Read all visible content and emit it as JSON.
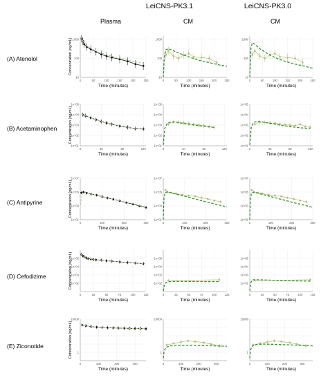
{
  "headers": {
    "group_pk31": "LeiCNS-PK3.1",
    "group_pk30": "LeiCNS-PK3.0",
    "col_plasma": "Plasma",
    "col_cm_a": "CM",
    "col_cm_b": "CM"
  },
  "rows": [
    {
      "label": "(A) Atenolol",
      "ylabel": "Concentration (ng/mL)",
      "xlabel": "Time (minutes)"
    },
    {
      "label": "(B) Acetaminophen",
      "ylabel": "Concentration (ng/mL)",
      "xlabel": "Time (minutes)"
    },
    {
      "label": "(C) Antipyrine",
      "ylabel": "Concentration (ng/mL)",
      "xlabel": "Time (minutes)"
    },
    {
      "label": "(D) Cefodizime",
      "ylabel": "Concentration (ng/mL)",
      "xlabel": "Time (minutes)"
    },
    {
      "label": "(E) Ziconotide",
      "ylabel": "Concentration (ng/mL)",
      "xlabel": "Time (minutes)"
    }
  ],
  "chart_data": [
    {
      "drug": "Atenolol",
      "type": "line",
      "yscale": "log",
      "xlim": [
        0,
        250
      ],
      "xticks": [
        0,
        50,
        100,
        150,
        200,
        250
      ],
      "ylim": [
        10,
        1500
      ],
      "yticks": [
        10,
        100,
        1000
      ],
      "ytick_labels": [
        "10",
        "100",
        "1000"
      ],
      "panels": {
        "plasma": {
          "observed": {
            "x": [
              5,
              10,
              15,
              25,
              40,
              60,
              80,
              100,
              120,
              150,
              180,
              210,
              240
            ],
            "y": [
              1100,
              800,
              550,
              400,
              300,
              220,
              160,
              130,
              110,
              90,
              70,
              50,
              40
            ]
          },
          "predicted": {
            "x": [
              2,
              10,
              25,
              50,
              80,
              120,
              160,
              200,
              240
            ],
            "y": [
              1300,
              800,
              450,
              280,
              190,
              130,
              95,
              70,
              55
            ]
          }
        },
        "cm_pk31": {
          "observed": {
            "x": [
              10,
              20,
              40,
              60,
              80,
              100,
              120,
              150,
              180,
              210
            ],
            "y": [
              150,
              250,
              130,
              100,
              150,
              180,
              120,
              110,
              100,
              60
            ]
          },
          "predicted": {
            "x": [
              0,
              5,
              10,
              20,
              40,
              70,
              100,
              140,
              180,
              220,
              250
            ],
            "y": [
              10,
              150,
              280,
              320,
              250,
              170,
              120,
              80,
              60,
              45,
              38
            ]
          }
        },
        "cm_pk30": {
          "observed": {
            "x": [
              10,
              20,
              40,
              60,
              80,
              100,
              120,
              150,
              180,
              210
            ],
            "y": [
              150,
              250,
              130,
              100,
              150,
              180,
              120,
              110,
              100,
              60
            ]
          },
          "predicted": {
            "x": [
              0,
              5,
              10,
              20,
              40,
              70,
              100,
              140,
              180,
              220,
              250
            ],
            "y": [
              10,
              350,
              650,
              550,
              320,
              180,
              110,
              70,
              50,
              38,
              30
            ]
          }
        }
      }
    },
    {
      "drug": "Acetaminophen",
      "type": "line",
      "yscale": "log",
      "xlim": [
        0,
        125
      ],
      "xticks": [
        0,
        40,
        80,
        120
      ],
      "ylim": [
        10,
        100000
      ],
      "yticks": [
        10,
        100,
        1000,
        10000,
        100000
      ],
      "ytick_labels": [
        "1e+01",
        "1e+02",
        "1e+03",
        "1e+04",
        "1e+05"
      ],
      "panels": {
        "plasma": {
          "observed": {
            "x": [
              5,
              10,
              20,
              30,
              40,
              50,
              60,
              75,
              90,
              105,
              120
            ],
            "y": [
              10000,
              8000,
              5000,
              3300,
              2200,
              1600,
              1200,
              800,
              600,
              450,
              420
            ]
          },
          "predicted": {
            "x": [
              2,
              10,
              20,
              40,
              60,
              80,
              100,
              120
            ],
            "y": [
              12000,
              8000,
              5000,
              2300,
              1200,
              700,
              500,
              400
            ]
          }
        },
        "cm_pk31": {
          "observed": {
            "x": [
              10,
              20,
              30,
              40,
              50,
              60,
              70,
              80,
              90,
              100
            ],
            "y": [
              1200,
              2000,
              1800,
              1600,
              1400,
              1200,
              1000,
              900,
              700,
              600
            ]
          },
          "predicted": {
            "x": [
              0,
              3,
              8,
              15,
              25,
              40,
              60,
              80,
              100
            ],
            "y": [
              12,
              500,
              1500,
              2000,
              1900,
              1400,
              1000,
              750,
              600
            ]
          }
        },
        "cm_pk30": {
          "observed": {
            "x": [
              10,
              20,
              30,
              40,
              50,
              60,
              70,
              80,
              90,
              100,
              110,
              120
            ],
            "y": [
              1200,
              2000,
              1800,
              1600,
              1500,
              1300,
              1100,
              1000,
              900,
              1200,
              700,
              600
            ]
          },
          "predicted": {
            "x": [
              0,
              3,
              8,
              15,
              25,
              40,
              60,
              80,
              100,
              120
            ],
            "y": [
              12,
              600,
              1800,
              2300,
              2000,
              1500,
              1000,
              700,
              550,
              450
            ]
          }
        }
      }
    },
    {
      "drug": "Antipyrine",
      "type": "line",
      "yscale": "log",
      "xlim": [
        0,
        300
      ],
      "xticks": [
        0,
        100,
        200,
        300
      ],
      "ylim": [
        10,
        10000000
      ],
      "yticks": [
        10,
        1000,
        100000,
        10000000
      ],
      "ytick_labels": [
        "1e+01",
        "1e+03",
        "1e+05",
        "1e+07"
      ],
      "panels": {
        "plasma": {
          "observed": {
            "x": [
              5,
              15,
              30,
              50,
              75,
              100,
              125,
              150,
              180,
              210,
              240,
              270,
              300
            ],
            "y": [
              80000,
              100000,
              70000,
              50000,
              35000,
              22000,
              14000,
              9000,
              5500,
              3000,
              1800,
              1000,
              600
            ]
          },
          "predicted": {
            "x": [
              1,
              10,
              50,
              100,
              150,
              200,
              250,
              300
            ],
            "y": [
              1500,
              90000,
              50000,
              22000,
              9000,
              4000,
              1700,
              700
            ]
          }
        },
        "cm_pk31": {
          "observed": {
            "x": [
              10,
              20,
              40,
              60,
              90,
              120,
              150,
              180,
              210,
              240,
              270
            ],
            "y": [
              200000,
              100000,
              80000,
              60000,
              40000,
              30000,
              25000,
              15000,
              10000,
              6000,
              4000
            ]
          },
          "predicted": {
            "x": [
              0,
              3,
              8,
              20,
              50,
              100,
              150,
              200,
              250,
              300
            ],
            "y": [
              10,
              10000,
              80000,
              110000,
              60000,
              25000,
              10000,
              4000,
              1700,
              700
            ]
          }
        },
        "cm_pk30": {
          "observed": {
            "x": [
              10,
              20,
              40,
              60,
              90,
              120,
              150,
              180,
              210,
              240,
              270
            ],
            "y": [
              200000,
              100000,
              80000,
              60000,
              40000,
              30000,
              25000,
              15000,
              10000,
              6000,
              4000
            ]
          },
          "predicted": {
            "x": [
              0,
              3,
              8,
              20,
              50,
              100,
              150,
              200,
              250,
              300
            ],
            "y": [
              10,
              8000,
              70000,
              100000,
              55000,
              22000,
              9000,
              3500,
              1500,
              600
            ]
          }
        }
      }
    },
    {
      "drug": "Cefodizime",
      "type": "line",
      "yscale": "log",
      "xlim": [
        0,
        125
      ],
      "xticks": [
        0,
        25,
        50,
        75,
        100,
        125
      ],
      "ylim": [
        10,
        1000000
      ],
      "yticks": [
        100,
        1000,
        10000,
        100000
      ],
      "ytick_labels": [
        "1e+02",
        "1e+03",
        "1e+04",
        "1e+05"
      ],
      "panels": {
        "plasma": {
          "observed": {
            "x": [
              2,
              5,
              8,
              12,
              15,
              20,
              25,
              30,
              40,
              50,
              60,
              75,
              90,
              105,
              120
            ],
            "y": [
              300000,
              200000,
              150000,
              110000,
              95000,
              85000,
              75000,
              68000,
              60000,
              52000,
              46000,
              38000,
              32000,
              27000,
              23000
            ]
          },
          "predicted": {
            "x": [
              1,
              10,
              30,
              60,
              90,
              120
            ],
            "y": [
              320000,
              120000,
              70000,
              46000,
              32000,
              23000
            ]
          }
        },
        "cm_pk31": {
          "observed": {
            "x": [
              10,
              110
            ],
            "y": [
              220,
              260
            ]
          },
          "predicted": {
            "x": [
              0,
              2,
              5,
              10,
              20,
              40,
              60,
              80,
              100,
              110
            ],
            "y": [
              12,
              50,
              120,
              150,
              165,
              165,
              165,
              160,
              160,
              160
            ]
          }
        },
        "cm_pk30": {
          "observed": {
            "x": [
              10,
              120
            ],
            "y": [
              220,
              260
            ]
          },
          "predicted": {
            "x": [
              0,
              2,
              5,
              10,
              20,
              40,
              60,
              80,
              100,
              120
            ],
            "y": [
              12,
              120,
              250,
              270,
              260,
              240,
              210,
              200,
              190,
              180
            ]
          }
        }
      }
    },
    {
      "drug": "Ziconotide",
      "type": "line",
      "yscale": "log",
      "xlim": [
        0,
        360
      ],
      "xticks": [
        0,
        100,
        200,
        300
      ],
      "ylim": [
        0.1,
        10000
      ],
      "yticks": [
        0.1,
        1,
        10,
        100,
        1000,
        10000
      ],
      "ytick_labels": [
        "",
        "1",
        "",
        "",
        "",
        "10000"
      ],
      "panels": {
        "plasma": {
          "observed": {
            "x": [
              10,
              30,
              60,
              90,
              120,
              150,
              180,
              210,
              240,
              270,
              300,
              330,
              360
            ],
            "y": [
              2000,
              1600,
              1300,
              1100,
              1000,
              950,
              900,
              850,
              800,
              780,
              750,
              730,
              700
            ]
          },
          "predicted": {
            "x": [
              1,
              20,
              60,
              120,
              200,
              280,
              360
            ],
            "y": [
              2200,
              1800,
              1300,
              1000,
              850,
              760,
              700
            ]
          }
        },
        "cm_pk31": {
          "observed": {
            "x": [
              20,
              60,
              100,
              140,
              180,
              230,
              270,
              320
            ],
            "y": [
              8,
              12,
              18,
              25,
              20,
              15,
              10,
              6
            ]
          },
          "predicted": {
            "x": [
              0,
              5,
              15,
              40,
              80,
              150,
              220,
              300,
              360
            ],
            "y": [
              0.2,
              1.5,
              4,
              6,
              7,
              7,
              6.5,
              6,
              5.5
            ]
          }
        },
        "cm_pk30": {
          "observed": {
            "x": [
              20,
              60,
              100,
              140,
              180,
              230,
              270,
              320
            ],
            "y": [
              8,
              12,
              18,
              25,
              20,
              15,
              10,
              6
            ]
          },
          "predicted": {
            "x": [
              0,
              5,
              15,
              40,
              80,
              150,
              220,
              300,
              360
            ],
            "y": [
              0.2,
              2,
              6,
              9,
              10,
              9,
              8,
              7,
              6
            ]
          }
        }
      }
    }
  ]
}
